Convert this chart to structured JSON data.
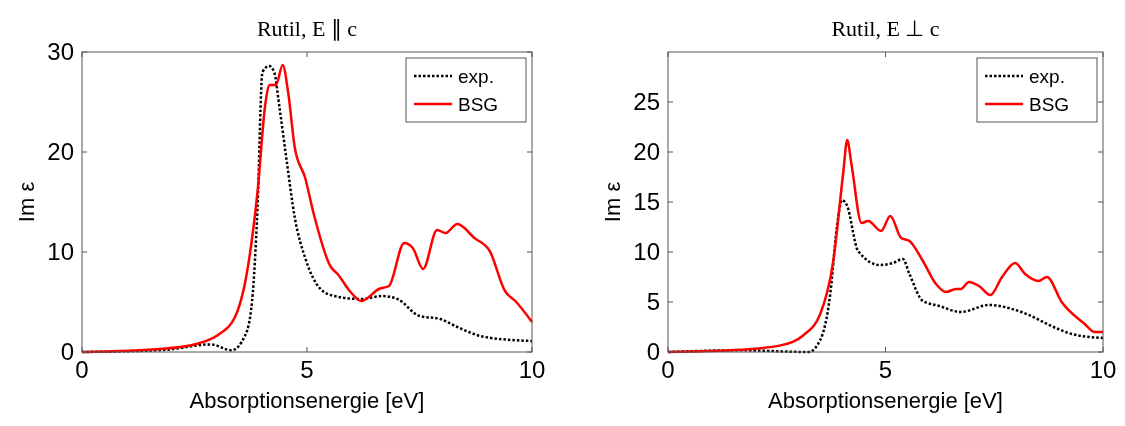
{
  "chart_data": [
    {
      "type": "line",
      "title": "Rutil, E ∥ c",
      "xlabel": "Absorptionsenergie [eV]",
      "ylabel": "Im ε",
      "xlim": [
        0,
        10
      ],
      "xticks": [
        0,
        5,
        10
      ],
      "ylim": [
        0,
        30
      ],
      "yticks": [
        0,
        10,
        20,
        30
      ],
      "legend": "top right",
      "grid": false,
      "series": [
        {
          "name": "exp.",
          "color": "#000000",
          "line_style": "dotted",
          "x": [
            0,
            1.8,
            2.87,
            3.32,
            3.63,
            3.78,
            3.9,
            4.01,
            4.16,
            4.27,
            4.39,
            4.54,
            4.73,
            4.96,
            5.3,
            5.6,
            6.21,
            6.67,
            7.01,
            7.5,
            7.96,
            8.34,
            8.95,
            10
          ],
          "values": [
            0,
            0.2,
            0.76,
            0.17,
            1.7,
            5.1,
            14.4,
            28,
            28.6,
            28,
            24.4,
            19.4,
            13.4,
            9.4,
            6.3,
            5.6,
            5.3,
            5.6,
            5.3,
            3.6,
            3.3,
            2.5,
            1.5,
            1.1
          ]
        },
        {
          "name": "BSG",
          "color": "#ff0000",
          "line_style": "solid",
          "x": [
            0,
            1.8,
            2.56,
            3.02,
            3.4,
            3.66,
            3.9,
            4.08,
            4.17,
            4.31,
            4.46,
            4.58,
            4.73,
            4.96,
            5.15,
            5.53,
            5.68,
            5.95,
            6.21,
            6.6,
            6.82,
            7.16,
            7.35,
            7.58,
            7.89,
            8.08,
            8.34,
            8.72,
            9.06,
            9.4,
            9.63,
            10
          ],
          "values": [
            0,
            0.33,
            0.83,
            1.7,
            3.5,
            7.8,
            16,
            25,
            26.7,
            26.7,
            28.7,
            26,
            20.4,
            17.4,
            13.8,
            8.5,
            7.8,
            6.1,
            5.1,
            6.3,
            6.6,
            10.9,
            10.4,
            8.3,
            12.2,
            11.9,
            12.8,
            11.4,
            10.1,
            6.1,
            5.1,
            3
          ]
        }
      ]
    },
    {
      "type": "line",
      "title": "Rutil, E ⊥ c",
      "xlabel": "Absorptionsenergie [eV]",
      "ylabel": "Im ε",
      "xlim": [
        0,
        10
      ],
      "xticks": [
        0,
        5,
        10
      ],
      "ylim": [
        0,
        30
      ],
      "yticks": [
        0,
        5,
        10,
        15,
        20,
        25
      ],
      "legend": "top right",
      "grid": false,
      "series": [
        {
          "name": "exp.",
          "color": "#000000",
          "line_style": "dotted",
          "x": [
            0,
            1.67,
            3.23,
            3.5,
            3.73,
            3.88,
            4.0,
            4.11,
            4.37,
            4.87,
            5.17,
            5.4,
            5.55,
            5.86,
            6.24,
            6.73,
            7.38,
            8.06,
            8.97,
            9.28,
            10
          ],
          "values": [
            0,
            0.17,
            0,
            1.2,
            5.8,
            12.4,
            15.2,
            14.7,
            10.1,
            8.7,
            8.9,
            9.3,
            7.8,
            5.1,
            4.6,
            4,
            4.7,
            4.1,
            2.3,
            1.8,
            1.4
          ]
        },
        {
          "name": "BSG",
          "color": "#ff0000",
          "line_style": "solid",
          "x": [
            0,
            1.67,
            2.59,
            3.12,
            3.5,
            3.8,
            4.03,
            4.12,
            4.22,
            4.45,
            4.6,
            4.9,
            5.11,
            5.36,
            5.55,
            5.86,
            6.16,
            6.39,
            6.62,
            6.73,
            6.92,
            7.15,
            7.41,
            7.68,
            7.98,
            8.21,
            8.52,
            8.71,
            9.05,
            9.58,
            9.81,
            10
          ],
          "values": [
            0,
            0.23,
            0.66,
            1.7,
            3.8,
            9.1,
            18,
            21.2,
            18.7,
            12.9,
            13.1,
            12.1,
            13.6,
            11.4,
            11.1,
            9.1,
            6.8,
            6,
            6.3,
            6.3,
            7,
            6.6,
            5.7,
            7.5,
            8.9,
            7.8,
            7.1,
            7.5,
            5,
            2.8,
            2,
            2
          ]
        }
      ]
    }
  ]
}
